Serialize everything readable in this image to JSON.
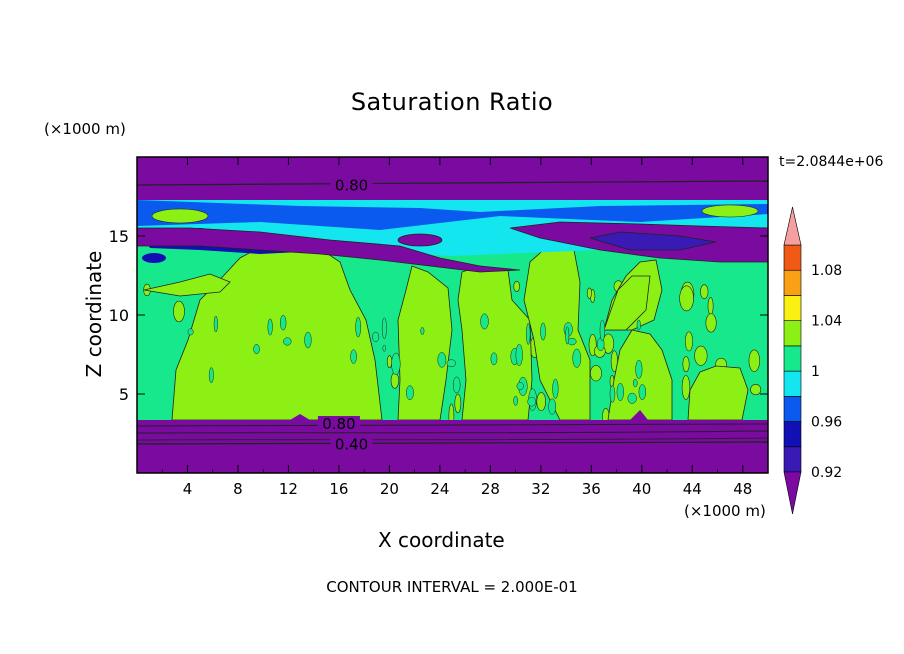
{
  "title": "Saturation Ratio",
  "yunit": "(×1000 m)",
  "xunit": "(×1000 m)",
  "time_label": "t=2.0844e+06",
  "xlabel": "X coordinate",
  "ylabel": "Z coordinate",
  "contour_interval": "CONTOUR INTERVAL = 2.000E-01",
  "chart_data": {
    "type": "heatmap",
    "title": "Saturation Ratio",
    "xlabel": "X coordinate",
    "ylabel": "Z coordinate",
    "xlim": [
      0,
      50
    ],
    "ylim": [
      0,
      20
    ],
    "x_ticks": [
      "4",
      "8",
      "12",
      "16",
      "20",
      "24",
      "28",
      "32",
      "36",
      "40",
      "44",
      "48"
    ],
    "x_tick_values": [
      4,
      8,
      12,
      16,
      20,
      24,
      28,
      32,
      36,
      40,
      44,
      48
    ],
    "y_ticks": [
      "5",
      "10",
      "15"
    ],
    "y_tick_values": [
      5,
      10,
      15
    ],
    "contour_labels": [
      {
        "text": "0.80",
        "x": 17,
        "z": 18.2
      },
      {
        "text": "0.80",
        "x": 16,
        "z": 3.1
      },
      {
        "text": "0.40",
        "x": 17,
        "z": 1.8
      }
    ],
    "colorbar": {
      "levels": [
        0.92,
        0.94,
        0.96,
        0.98,
        1,
        1.02,
        1.04,
        1.06,
        1.08,
        1.1
      ],
      "labels": [
        "0.92",
        "0.96",
        "1",
        "1.04",
        "1.08"
      ],
      "label_values": [
        0.92,
        0.96,
        1,
        1.04,
        1.08
      ],
      "colors": [
        "#7a0aa0",
        "#3a1ab4",
        "#1010b4",
        "#0a5af0",
        "#14e6f0",
        "#18e88c",
        "#8cf014",
        "#faf014",
        "#faa014",
        "#f05a14",
        "#f01414",
        "#f5a0a0"
      ]
    },
    "fields": {
      "background_value": 0.99,
      "top_layer": {
        "value": 0.8,
        "z_range": [
          17.2,
          20
        ]
      },
      "upper_band": {
        "values": [
          0.9,
          0.95,
          0.97
        ],
        "z_range": [
          12.5,
          17.2
        ]
      },
      "bottom_layer": {
        "value": 0.4,
        "z_range": [
          0,
          3.3
        ]
      },
      "cloud_regions_value": 1.01
    }
  }
}
